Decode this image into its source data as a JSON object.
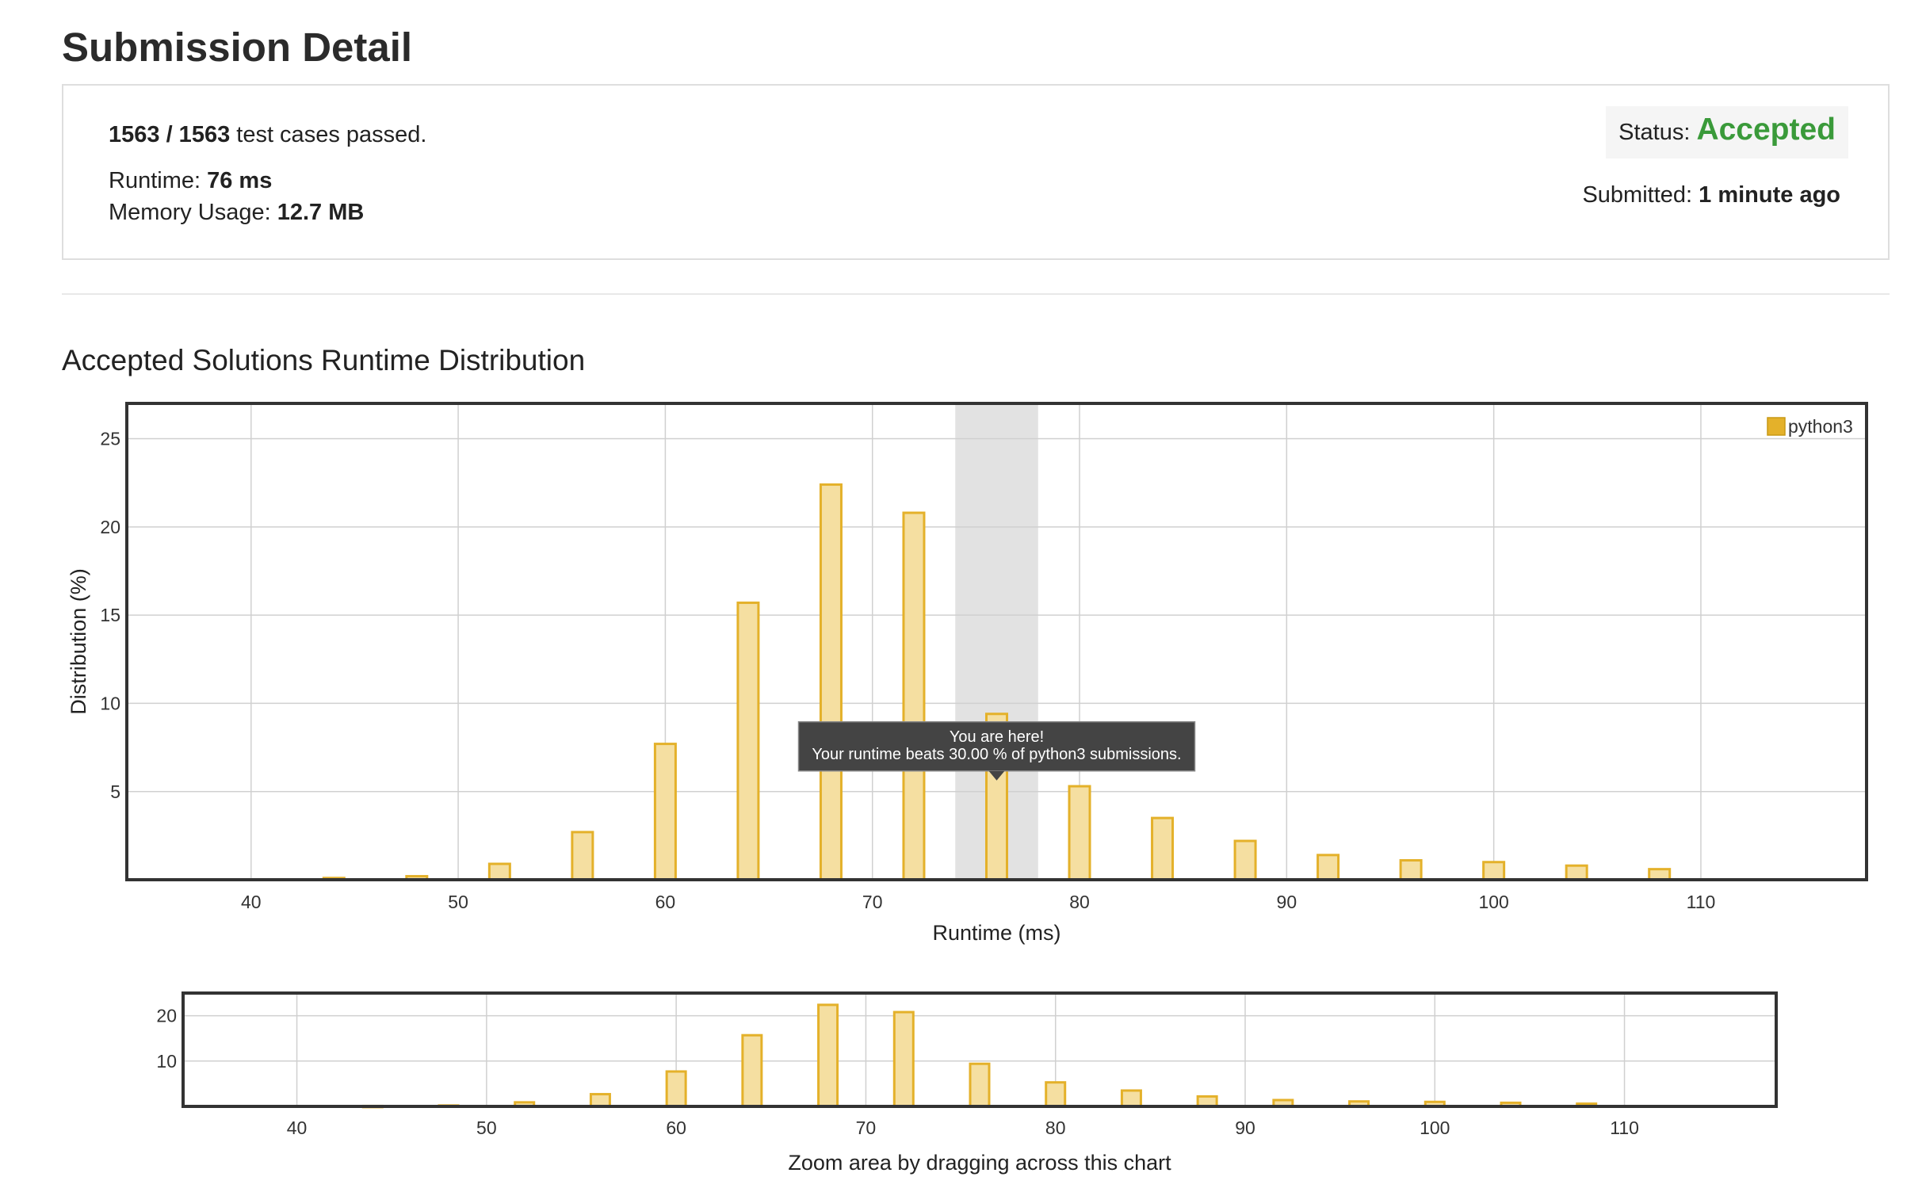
{
  "page": {
    "title": "Submission Detail"
  },
  "summary": {
    "passed": "1563 / 1563",
    "passed_suffix": " test cases passed.",
    "runtime_label": "Runtime: ",
    "runtime_value": "76 ms",
    "memory_label": "Memory Usage: ",
    "memory_value": "12.7 MB",
    "status_label": "Status: ",
    "status_value": "Accepted",
    "submitted_label": "Submitted: ",
    "submitted_value": "1 minute ago"
  },
  "distribution": {
    "title": "Accepted Solutions Runtime Distribution"
  },
  "tooltip": {
    "line1": "You are here!",
    "line2": "Your runtime beats 30.00 % of python3 submissions."
  },
  "colors": {
    "bar_fill": "#f5dfa1",
    "bar_stroke": "#e4b12a",
    "legend_swatch": "#e4b12a",
    "accepted": "#3a9a3a",
    "highlight_band": "#e2e2e2",
    "tooltip_bg": "#444444"
  },
  "chart_data": [
    {
      "type": "bar",
      "xlabel": "Runtime (ms)",
      "ylabel": "Distribution (%)",
      "xlim": [
        34,
        118
      ],
      "ylim": [
        0,
        27
      ],
      "xticks": [
        40,
        50,
        60,
        70,
        80,
        90,
        100,
        110
      ],
      "yticks": [
        5,
        10,
        15,
        20,
        25
      ],
      "grid": true,
      "legend_position": "top-right",
      "highlight_range": [
        74,
        78
      ],
      "highlight_point": {
        "x": 76,
        "y": 9.4
      },
      "series": [
        {
          "name": "python3",
          "x": [
            44,
            48,
            52,
            56,
            60,
            64,
            68,
            72,
            76,
            80,
            84,
            88,
            92,
            96,
            100,
            104,
            108
          ],
          "values": [
            0.1,
            0.2,
            0.9,
            2.7,
            7.7,
            15.7,
            22.4,
            20.8,
            9.4,
            5.3,
            3.5,
            2.2,
            1.4,
            1.1,
            1.0,
            0.8,
            0.6
          ]
        }
      ]
    },
    {
      "type": "bar",
      "xlabel": "Zoom area by dragging across this chart",
      "xlim": [
        34,
        118
      ],
      "ylim": [
        0,
        25
      ],
      "xticks": [
        40,
        50,
        60,
        70,
        80,
        90,
        100,
        110
      ],
      "yticks": [
        10,
        20
      ],
      "grid": true,
      "series": [
        {
          "x": [
            44,
            48,
            52,
            56,
            60,
            64,
            68,
            72,
            76,
            80,
            84,
            88,
            92,
            96,
            100,
            104,
            108
          ],
          "values": [
            0.1,
            0.2,
            0.9,
            2.7,
            7.7,
            15.7,
            22.4,
            20.8,
            9.4,
            5.3,
            3.5,
            2.2,
            1.4,
            1.1,
            1.0,
            0.8,
            0.6
          ]
        }
      ]
    }
  ]
}
